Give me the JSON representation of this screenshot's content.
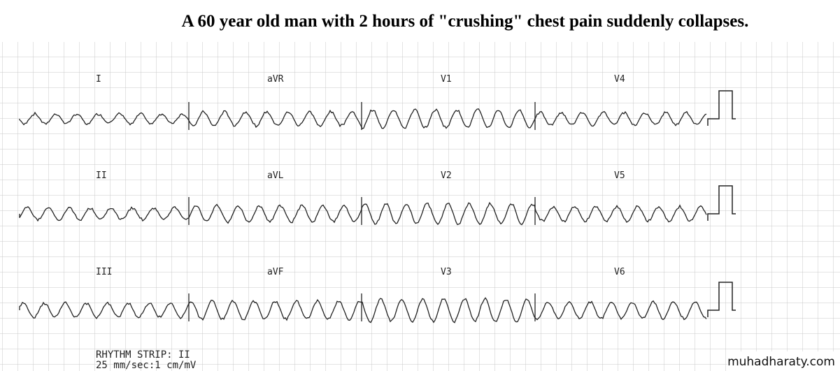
{
  "title": "A 60 year old man with 2 hours of \"crushing\" chest pain suddenly collapses.",
  "leads": [
    [
      "I",
      "aVR",
      "V1",
      "V4"
    ],
    [
      "II",
      "aVL",
      "V2",
      "V5"
    ],
    [
      "III",
      "aVF",
      "V3",
      "V6"
    ]
  ],
  "rhythm_strip": [
    "RHYTHM STRIP: II",
    "25 mm/sec:1 cm/mV"
  ],
  "watermark": "muhadharaty.com"
}
